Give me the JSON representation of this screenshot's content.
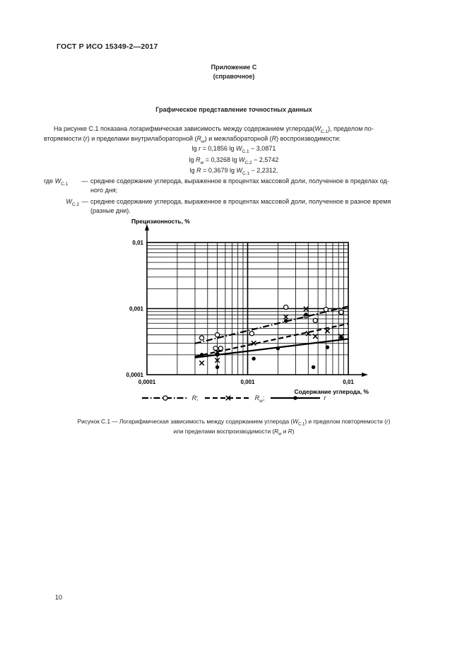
{
  "page": {
    "header": "ГОСТ Р ИСО 15349-2—2017",
    "page_number": "10"
  },
  "appendix": {
    "title": "Приложение С",
    "subtitle": "(справочное)",
    "section_title": "Графическое представление точностных данных"
  },
  "intro": {
    "segments": [
      {
        "t": "На рисунке С.1 показана логарифмическая зависимость между содержанием углерода("
      },
      {
        "t": "W",
        "i": 1
      },
      {
        "t": "C.1",
        "sub": 1
      },
      {
        "t": "), пределом по-"
      },
      {
        "br": 1
      },
      {
        "t": "вторяемости ("
      },
      {
        "t": "r",
        "i": 1
      },
      {
        "t": ") и пределами внутрилабораторной ("
      },
      {
        "t": "R",
        "i": 1
      },
      {
        "t": "w",
        "i": 1,
        "sub": 1
      },
      {
        "t": ") и межлабораторной ("
      },
      {
        "t": "R",
        "i": 1
      },
      {
        "t": ") воспроизводимости:"
      }
    ]
  },
  "formulas": {
    "f1": [
      {
        "t": "lg "
      },
      {
        "t": "r",
        "i": 1
      },
      {
        "t": " = 0,1856 lg "
      },
      {
        "t": "W",
        "i": 1
      },
      {
        "t": "C.1",
        "sub": 1
      },
      {
        "t": " − 3,0871"
      }
    ],
    "f2": [
      {
        "t": "lg "
      },
      {
        "t": "R",
        "i": 1
      },
      {
        "t": "w",
        "i": 1,
        "sub": 1
      },
      {
        "t": " = 0,3268 lg "
      },
      {
        "t": "W",
        "i": 1
      },
      {
        "t": "C.2",
        "sub": 1
      },
      {
        "t": " − 2,5742"
      }
    ],
    "f3": [
      {
        "t": "lg "
      },
      {
        "t": "R",
        "i": 1
      },
      {
        "t": " = 0,3679 lg "
      },
      {
        "t": "W",
        "i": 1
      },
      {
        "t": "C.1",
        "sub": 1
      },
      {
        "t": " − 2,2312,"
      }
    ]
  },
  "definitions": {
    "d1": {
      "term": [
        {
          "t": "где "
        },
        {
          "t": "W",
          "i": 1
        },
        {
          "t": "C.1",
          "sub": 1
        }
      ],
      "dash": "—",
      "text": [
        {
          "t": "среднее содержание углерода, выраженное в процентах массовой доли, полученное в пределах од-"
        },
        {
          "br": 1
        },
        {
          "t": "ного дня;"
        }
      ]
    },
    "d2": {
      "term": [
        {
          "t": "W",
          "i": 1
        },
        {
          "t": "C.2",
          "sub": 1
        }
      ],
      "dash": "—",
      "text": [
        {
          "t": "среднее содержание углерода, выраженное в процентах массовой доли, полученное в разное время"
        },
        {
          "br": 1
        },
        {
          "t": "(разные дни)."
        }
      ]
    }
  },
  "chart_data": {
    "type": "scatter",
    "title": "",
    "x_axis": {
      "label": "Содержание углерода, %",
      "scale": "log",
      "range": [
        0.0001,
        0.01
      ],
      "tick_values": [
        0.0001,
        0.001,
        0.01
      ],
      "tick_labels": [
        "0,0001",
        "0,001",
        "0,01"
      ]
    },
    "y_axis": {
      "label": "Прецизионность, %",
      "scale": "log",
      "range": [
        0.0001,
        0.01
      ],
      "tick_values": [
        0.0001,
        0.001,
        0.01
      ],
      "tick_labels": [
        "0,0001",
        "0,001",
        "0,01"
      ]
    },
    "grid": "log-log, minor gridlines at 2–9 of each decade on both axes",
    "regression_lines": [
      {
        "name": "R",
        "equation": "lg R = 0,3679 lg WC.1 − 2,2312",
        "slope": 0.3679,
        "intercept": -2.2312,
        "line_style": "dashdot",
        "x_start": 0.0003,
        "x_end": 0.01
      },
      {
        "name": "Rw",
        "equation": "lg Rw = 0,3268 lg WC.2 − 2,5742",
        "slope": 0.3268,
        "intercept": -2.5742,
        "line_style": "dashed",
        "x_start": 0.0003,
        "x_end": 0.01
      },
      {
        "name": "r",
        "equation": "lg r = 0,1856 lg WC.1 − 3,0871",
        "slope": 0.1856,
        "intercept": -3.0871,
        "line_style": "solid",
        "x_start": 0.0003,
        "x_end": 0.01
      }
    ],
    "series": [
      {
        "name": "R",
        "marker": "open-circle",
        "points": [
          [
            0.00035,
            0.00036
          ],
          [
            0.00048,
            0.00025
          ],
          [
            0.0005,
            0.0004
          ],
          [
            0.00054,
            0.00025
          ],
          [
            0.0011,
            0.00042
          ],
          [
            0.0024,
            0.00105
          ],
          [
            0.0038,
            0.00078
          ],
          [
            0.0047,
            0.00066
          ],
          [
            0.006,
            0.00097
          ],
          [
            0.0085,
            0.00088
          ]
        ]
      },
      {
        "name": "Rw",
        "marker": "x",
        "points": [
          [
            0.00035,
            0.00015
          ],
          [
            0.0005,
            0.00022
          ],
          [
            0.0005,
            0.000165
          ],
          [
            0.00115,
            0.0003
          ],
          [
            0.0024,
            0.00075
          ],
          [
            0.0038,
            0.00099
          ],
          [
            0.004,
            0.00042
          ],
          [
            0.0047,
            0.00038
          ],
          [
            0.0062,
            0.00046
          ],
          [
            0.0085,
            0.00038
          ]
        ]
      },
      {
        "name": "r",
        "marker": "filled-circle",
        "points": [
          [
            0.00035,
            0.0002
          ],
          [
            0.0005,
            0.0002
          ],
          [
            0.0005,
            0.00013
          ],
          [
            0.00115,
            0.000175
          ],
          [
            0.002,
            0.00025
          ],
          [
            0.0024,
            0.00065
          ],
          [
            0.0038,
            0.00081
          ],
          [
            0.0045,
            0.00013
          ],
          [
            0.0062,
            0.00026
          ],
          [
            0.0085,
            0.00037
          ]
        ]
      }
    ]
  },
  "legend": {
    "items": [
      {
        "name": "R",
        "line_style": "dashdot",
        "marker": "open-circle",
        "label": [
          {
            "t": "R",
            "i": 1
          },
          {
            "t": ";"
          }
        ]
      },
      {
        "name": "Rw",
        "line_style": "dashed",
        "marker": "x",
        "label": [
          {
            "t": "R",
            "i": 1
          },
          {
            "t": "w",
            "i": 1,
            "sub": 1
          },
          {
            "t": ";"
          }
        ]
      },
      {
        "name": "r",
        "line_style": "solid",
        "marker": "filled-circle",
        "label": [
          {
            "t": "r",
            "i": 1
          }
        ]
      }
    ]
  },
  "caption": {
    "line1": [
      {
        "t": "Рисунок С.1 — Логарифмическая зависимость между содержанием углерода ("
      },
      {
        "t": "W",
        "i": 1
      },
      {
        "t": "C.1",
        "sub": 1
      },
      {
        "t": ") и пределом повторяемости ("
      },
      {
        "t": "r",
        "i": 1
      },
      {
        "t": ")"
      }
    ],
    "line2": [
      {
        "t": "или пределами воспроизводимости ("
      },
      {
        "t": "R",
        "i": 1
      },
      {
        "t": "w",
        "i": 1,
        "sub": 1
      },
      {
        "t": " и "
      },
      {
        "t": "R",
        "i": 1
      },
      {
        "t": ")"
      }
    ]
  }
}
